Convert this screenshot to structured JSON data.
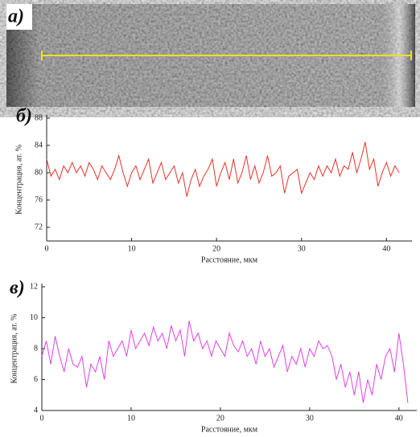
{
  "image_label": "а)",
  "chart_data": [
    {
      "type": "line",
      "label": "б)",
      "x_label": "Расстояние, мкм",
      "y_label": "Концентрация, ат. %",
      "xlim": [
        0,
        43
      ],
      "xticks": [
        0,
        10,
        20,
        30,
        40
      ],
      "ylim": [
        70,
        88
      ],
      "yticks": [
        72,
        76,
        80,
        84,
        88
      ],
      "series": [
        {
          "color": "#e8332a",
          "x": [
            0,
            0.5,
            1,
            1.5,
            2,
            2.5,
            3,
            3.5,
            4,
            4.5,
            5,
            5.5,
            6,
            6.5,
            7,
            7.5,
            8,
            8.5,
            9,
            9.5,
            10,
            10.5,
            11,
            11.5,
            12,
            12.5,
            13,
            13.5,
            14,
            14.5,
            15,
            15.5,
            16,
            16.5,
            17,
            17.5,
            18,
            18.5,
            19,
            19.5,
            20,
            20.5,
            21,
            21.5,
            22,
            22.5,
            23,
            23.5,
            24,
            24.5,
            25,
            25.5,
            26,
            26.5,
            27,
            27.5,
            28,
            28.5,
            29,
            29.5,
            30,
            30.5,
            31,
            31.5,
            32,
            32.5,
            33,
            33.5,
            34,
            34.5,
            35,
            35.5,
            36,
            36.5,
            37,
            37.5,
            38,
            38.5,
            39,
            39.5,
            40,
            40.5,
            41,
            41.5
          ],
          "values": [
            82,
            79.5,
            80.5,
            79,
            81,
            80,
            81.5,
            80,
            81,
            79.5,
            81.5,
            80.5,
            79,
            81,
            80,
            79,
            80.5,
            82.5,
            80,
            78,
            80,
            81,
            79,
            80.5,
            82,
            78.5,
            80,
            81.5,
            79,
            80,
            81,
            78.5,
            80,
            76.5,
            79,
            80.5,
            78,
            79.5,
            80.5,
            82,
            78,
            80,
            81.5,
            79,
            82,
            78.5,
            80,
            82.5,
            79,
            81,
            78.5,
            80,
            82.5,
            79.5,
            80,
            81,
            77,
            79.5,
            80,
            80.5,
            77,
            78.5,
            80,
            79,
            81,
            79.5,
            81,
            80,
            82,
            79.5,
            81,
            80.5,
            83,
            80,
            82,
            84.5,
            80.5,
            82,
            78,
            80,
            81.5,
            79.5,
            81,
            80
          ]
        }
      ]
    },
    {
      "type": "line",
      "label": "в)",
      "x_label": "Расстояние, мкм",
      "y_label": "Концентрация, ат. %",
      "xlim": [
        0,
        42
      ],
      "xticks": [
        0,
        10,
        20,
        30,
        40
      ],
      "ylim": [
        4,
        12
      ],
      "yticks": [
        4,
        6,
        8,
        10,
        12
      ],
      "series": [
        {
          "color": "#e040e8",
          "x": [
            0,
            0.5,
            1,
            1.5,
            2,
            2.5,
            3,
            3.5,
            4,
            4.5,
            5,
            5.5,
            6,
            6.5,
            7,
            7.5,
            8,
            8.5,
            9,
            9.5,
            10,
            10.5,
            11,
            11.5,
            12,
            12.5,
            13,
            13.5,
            14,
            14.5,
            15,
            15.5,
            16,
            16.5,
            17,
            17.5,
            18,
            18.5,
            19,
            19.5,
            20,
            20.5,
            21,
            21.5,
            22,
            22.5,
            23,
            23.5,
            24,
            24.5,
            25,
            25.5,
            26,
            26.5,
            27,
            27.5,
            28,
            28.5,
            29,
            29.5,
            30,
            30.5,
            31,
            31.5,
            32,
            32.5,
            33,
            33.5,
            34,
            34.5,
            35,
            35.5,
            36,
            36.5,
            37,
            37.5,
            38,
            38.5,
            39,
            39.5,
            40,
            40.5,
            41
          ],
          "values": [
            7.5,
            8.5,
            7,
            8.8,
            7.5,
            6.5,
            8,
            7,
            6.8,
            7.5,
            5.5,
            7,
            6.5,
            7.5,
            6,
            8.5,
            7.5,
            8,
            8.5,
            7.5,
            9.2,
            8,
            8.5,
            9,
            8.2,
            9.4,
            8.5,
            9,
            8,
            9.5,
            8.5,
            9.2,
            7.5,
            9.8,
            8.5,
            9,
            8,
            8.5,
            7.5,
            8.5,
            8,
            7.5,
            9,
            8.2,
            7.8,
            8.5,
            7.5,
            8,
            7,
            8.5,
            7.5,
            8,
            6.8,
            7.5,
            8.2,
            6.5,
            7.5,
            7,
            8,
            6.8,
            8,
            7.5,
            8.5,
            8,
            8.2,
            7.5,
            6,
            7,
            5.5,
            6.5,
            5,
            6.5,
            4.5,
            6,
            5,
            7,
            6,
            7.5,
            8,
            6.5,
            9,
            7,
            4.5
          ]
        }
      ]
    }
  ]
}
